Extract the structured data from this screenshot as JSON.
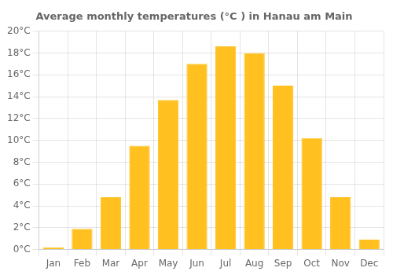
{
  "chart_data": {
    "type": "bar",
    "title": "Average monthly temperatures (°C ) in Hanau am Main",
    "categories": [
      "Jan",
      "Feb",
      "Mar",
      "Apr",
      "May",
      "Jun",
      "Jul",
      "Aug",
      "Sep",
      "Oct",
      "Nov",
      "Dec"
    ],
    "values": [
      0.2,
      1.9,
      4.8,
      9.5,
      13.7,
      17.0,
      18.6,
      18.0,
      15.0,
      10.2,
      4.8,
      0.9
    ],
    "color": "#FFC020",
    "ylim": [
      0,
      20
    ],
    "yticks": [
      {
        "value": 0,
        "label": "0°C"
      },
      {
        "value": 2,
        "label": "2°C"
      },
      {
        "value": 4,
        "label": "4°C"
      },
      {
        "value": 6,
        "label": "6°C"
      },
      {
        "value": 8,
        "label": "8°C"
      },
      {
        "value": 10,
        "label": "10°C"
      },
      {
        "value": 12,
        "label": "12°C"
      },
      {
        "value": 14,
        "label": "14°C"
      },
      {
        "value": 16,
        "label": "16°C"
      },
      {
        "value": 18,
        "label": "18°C"
      },
      {
        "value": 20,
        "label": "20°C"
      }
    ],
    "grid": true
  }
}
